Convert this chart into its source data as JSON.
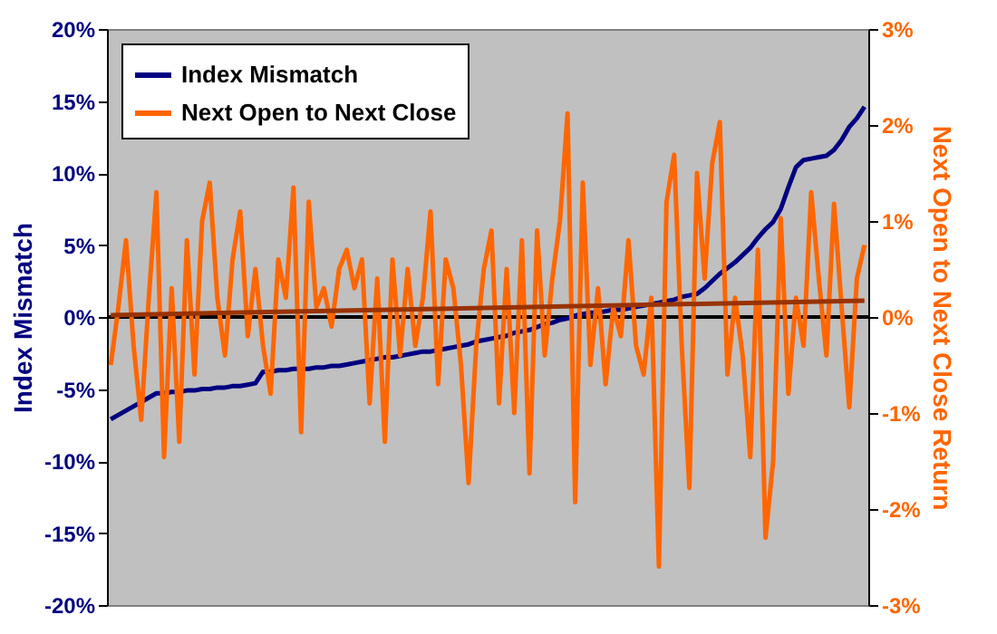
{
  "chart_data": {
    "type": "line",
    "categories": [
      null,
      null,
      null,
      null,
      null,
      null,
      null,
      null,
      null,
      null,
      null,
      null,
      null,
      null,
      null,
      null,
      null,
      null,
      null,
      null,
      null,
      null,
      null,
      null,
      null,
      null,
      null,
      null,
      null,
      null,
      null,
      null,
      null,
      null,
      null,
      null,
      null,
      null,
      null,
      null,
      null,
      null,
      null,
      null,
      null,
      null,
      null,
      null,
      null,
      null,
      null,
      null,
      null,
      null,
      null,
      null,
      null,
      null,
      null,
      null,
      null,
      null,
      null,
      null,
      null,
      null,
      null,
      null,
      null,
      null,
      null,
      null,
      null,
      null,
      null,
      null,
      null,
      null,
      null,
      null,
      null,
      null,
      null,
      null,
      null,
      null,
      null,
      null,
      null,
      null,
      null,
      null,
      null,
      null,
      null,
      null,
      null,
      null,
      null,
      null
    ],
    "ylabel": "Index Mismatch",
    "y2label": "Next Open to Next Close Return",
    "ylim": [
      -20,
      20
    ],
    "yticks": [
      {
        "value": -20,
        "label": "-20%"
      },
      {
        "value": -15,
        "label": "-15%"
      },
      {
        "value": -10,
        "label": "-10%"
      },
      {
        "value": -5,
        "label": "-5%"
      },
      {
        "value": 0,
        "label": "0%"
      },
      {
        "value": 5,
        "label": "5%"
      },
      {
        "value": 10,
        "label": "10%"
      },
      {
        "value": 15,
        "label": "15%"
      },
      {
        "value": 20,
        "label": "20%"
      }
    ],
    "y2lim": [
      -3,
      3
    ],
    "y2ticks": [
      {
        "value": -3,
        "label": "-3%"
      },
      {
        "value": -2,
        "label": "-2%"
      },
      {
        "value": -1,
        "label": "-1%"
      },
      {
        "value": 0,
        "label": "0%"
      },
      {
        "value": 1,
        "label": "1%"
      },
      {
        "value": 2,
        "label": "2%"
      },
      {
        "value": 3,
        "label": "3%"
      }
    ],
    "grid": false,
    "legend": "top left",
    "ref_lines": [
      {
        "axis": "y",
        "value": 0,
        "color": "#000000"
      }
    ],
    "series": [
      {
        "name": "Index Mismatch",
        "color": "#000080",
        "values": [
          -7.1,
          -6.8,
          -6.5,
          -6.2,
          -5.9,
          -5.6,
          -5.3,
          -5.3,
          -5.2,
          -5.2,
          -5.1,
          -5.1,
          -5.0,
          -5.0,
          -4.9,
          -4.9,
          -4.8,
          -4.8,
          -4.7,
          -4.6,
          -3.8,
          -3.8,
          -3.7,
          -3.7,
          -3.6,
          -3.6,
          -3.6,
          -3.5,
          -3.5,
          -3.4,
          -3.4,
          -3.3,
          -3.2,
          -3.1,
          -3.0,
          -2.9,
          -2.8,
          -2.8,
          -2.7,
          -2.6,
          -2.5,
          -2.4,
          -2.4,
          -2.3,
          -2.2,
          -2.1,
          -2.0,
          -1.9,
          -1.7,
          -1.6,
          -1.5,
          -1.4,
          -1.3,
          -1.1,
          -1.0,
          -0.9,
          -0.7,
          -0.5,
          -0.4,
          -0.2,
          -0.1,
          0.1,
          0.2,
          0.3,
          0.3,
          0.4,
          0.5,
          0.5,
          0.6,
          0.7,
          0.8,
          0.9,
          1.0,
          1.1,
          1.2,
          1.4,
          1.5,
          1.6,
          2.0,
          2.5,
          3.0,
          3.4,
          3.8,
          4.3,
          4.8,
          5.5,
          6.1,
          6.6,
          7.5,
          9.0,
          10.4,
          10.9,
          11.0,
          11.1,
          11.2,
          11.6,
          12.3,
          13.2,
          13.8,
          14.6
        ]
      },
      {
        "name": "Next Open to Next Close",
        "color": "#ff6600",
        "axis": "y2",
        "values": [
          -0.5,
          0.1,
          0.8,
          -0.3,
          -1.07,
          0.2,
          1.3,
          -1.46,
          0.3,
          -1.3,
          0.8,
          -0.6,
          1.0,
          1.4,
          0.2,
          -0.4,
          0.6,
          1.1,
          -0.2,
          0.5,
          -0.3,
          -0.8,
          0.6,
          0.2,
          1.35,
          -1.2,
          1.2,
          0.1,
          0.3,
          -0.1,
          0.5,
          0.7,
          0.3,
          0.6,
          -0.9,
          0.4,
          -1.3,
          0.6,
          -0.4,
          0.5,
          -0.3,
          0.2,
          1.1,
          -0.7,
          0.6,
          0.3,
          -0.5,
          -1.73,
          -0.3,
          0.5,
          0.9,
          -0.9,
          0.5,
          -1.0,
          0.8,
          -1.63,
          0.9,
          -0.4,
          0.4,
          1.0,
          2.12,
          -1.93,
          1.4,
          -0.5,
          0.3,
          -0.7,
          0.1,
          -0.2,
          0.8,
          -0.3,
          -0.6,
          0.2,
          -2.6,
          1.2,
          1.69,
          -0.3,
          -1.78,
          1.5,
          0.4,
          1.6,
          2.03,
          -0.6,
          0.2,
          -0.4,
          -1.46,
          0.7,
          -2.3,
          -1.5,
          1.03,
          -0.8,
          0.2,
          -0.3,
          1.3,
          0.4,
          -0.4,
          1.18,
          0.1,
          -0.94,
          0.4,
          0.75
        ]
      },
      {
        "color": "#993300",
        "axis": "y2",
        "values": [
          0.02,
          null,
          null,
          null,
          null,
          null,
          null,
          null,
          null,
          null,
          null,
          null,
          null,
          null,
          null,
          null,
          null,
          null,
          null,
          null,
          null,
          null,
          null,
          null,
          null,
          null,
          null,
          null,
          null,
          null,
          null,
          null,
          null,
          null,
          null,
          null,
          null,
          null,
          null,
          null,
          null,
          null,
          null,
          null,
          null,
          null,
          null,
          null,
          null,
          null,
          null,
          null,
          null,
          null,
          null,
          null,
          null,
          null,
          null,
          null,
          null,
          null,
          null,
          null,
          null,
          null,
          null,
          null,
          null,
          null,
          null,
          null,
          null,
          null,
          null,
          null,
          null,
          null,
          null,
          null,
          null,
          null,
          null,
          null,
          null,
          null,
          null,
          null,
          null,
          null,
          null,
          null,
          null,
          null,
          null,
          null,
          null,
          null,
          null,
          0.17
        ]
      }
    ]
  }
}
